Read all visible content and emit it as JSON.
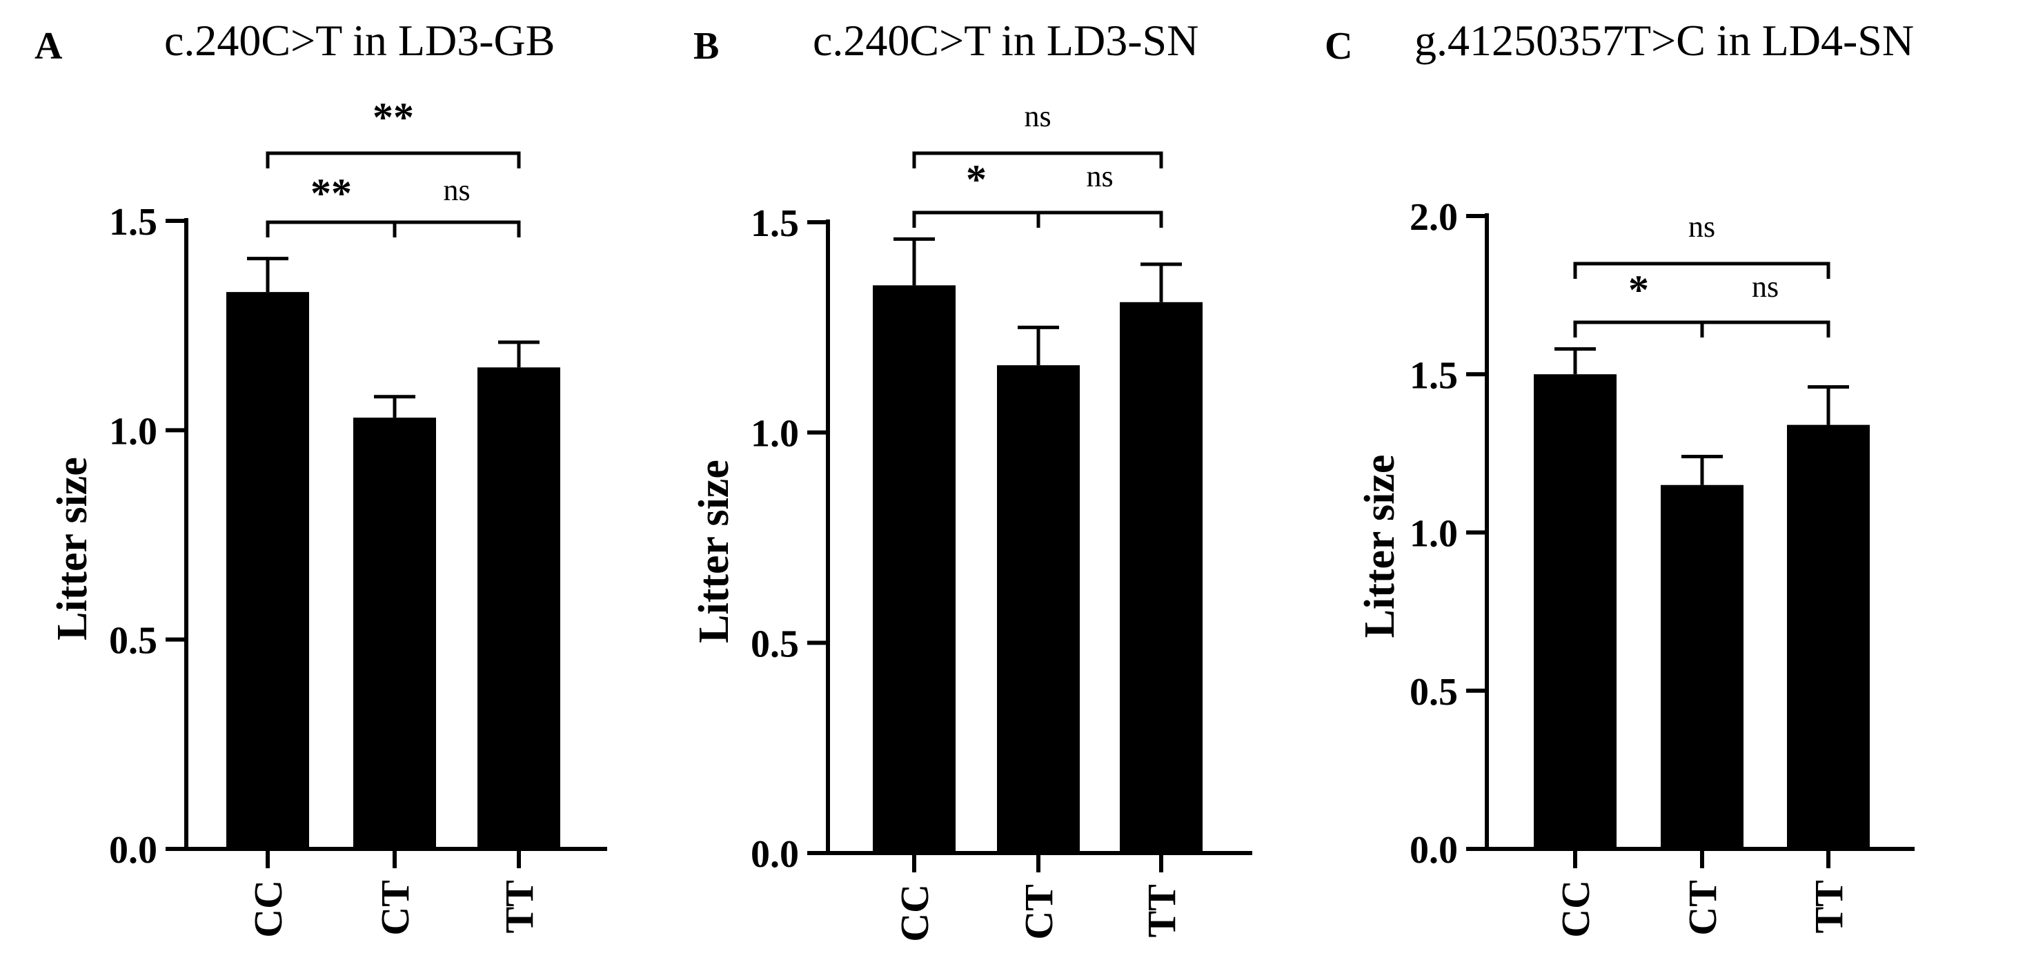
{
  "chart_data": [
    {
      "type": "bar",
      "panel_letter": "A",
      "title": "c.240C>T in LD3-GB",
      "categories": [
        "CC",
        "CT",
        "TT"
      ],
      "values": [
        1.33,
        1.03,
        1.15
      ],
      "errors": [
        0.08,
        0.05,
        0.06
      ],
      "ylabel": "Litter size",
      "ylim": [
        0,
        1.5
      ],
      "yticks": [
        "0.0",
        "0.5",
        "1.0",
        "1.5"
      ],
      "significance": [
        {
          "from": 0,
          "to": 2,
          "label": "**"
        },
        {
          "from": 0,
          "to": 1,
          "label": "**"
        },
        {
          "from": 1,
          "to": 2,
          "label": "ns"
        }
      ],
      "bar_color": "#000000"
    },
    {
      "type": "bar",
      "panel_letter": "B",
      "title": "c.240C>T in LD3-SN",
      "categories": [
        "CC",
        "CT",
        "TT"
      ],
      "values": [
        1.35,
        1.16,
        1.31
      ],
      "errors": [
        0.11,
        0.09,
        0.09
      ],
      "ylabel": "Litter size",
      "ylim": [
        0,
        1.5
      ],
      "yticks": [
        "0.0",
        "0.5",
        "1.0",
        "1.5"
      ],
      "significance": [
        {
          "from": 0,
          "to": 2,
          "label": "ns"
        },
        {
          "from": 0,
          "to": 1,
          "label": "*"
        },
        {
          "from": 1,
          "to": 2,
          "label": "ns"
        }
      ],
      "bar_color": "#000000"
    },
    {
      "type": "bar",
      "panel_letter": "C",
      "title": "g.41250357T>C in LD4-SN",
      "categories": [
        "CC",
        "CT",
        "TT"
      ],
      "values": [
        1.5,
        1.15,
        1.34
      ],
      "errors": [
        0.08,
        0.09,
        0.12
      ],
      "ylabel": "Litter size",
      "ylim": [
        0,
        2.0
      ],
      "yticks": [
        "0.0",
        "0.5",
        "1.0",
        "1.5",
        "2.0"
      ],
      "significance": [
        {
          "from": 0,
          "to": 2,
          "label": "ns"
        },
        {
          "from": 0,
          "to": 1,
          "label": "*"
        },
        {
          "from": 1,
          "to": 2,
          "label": "ns"
        }
      ],
      "bar_color": "#000000"
    }
  ]
}
